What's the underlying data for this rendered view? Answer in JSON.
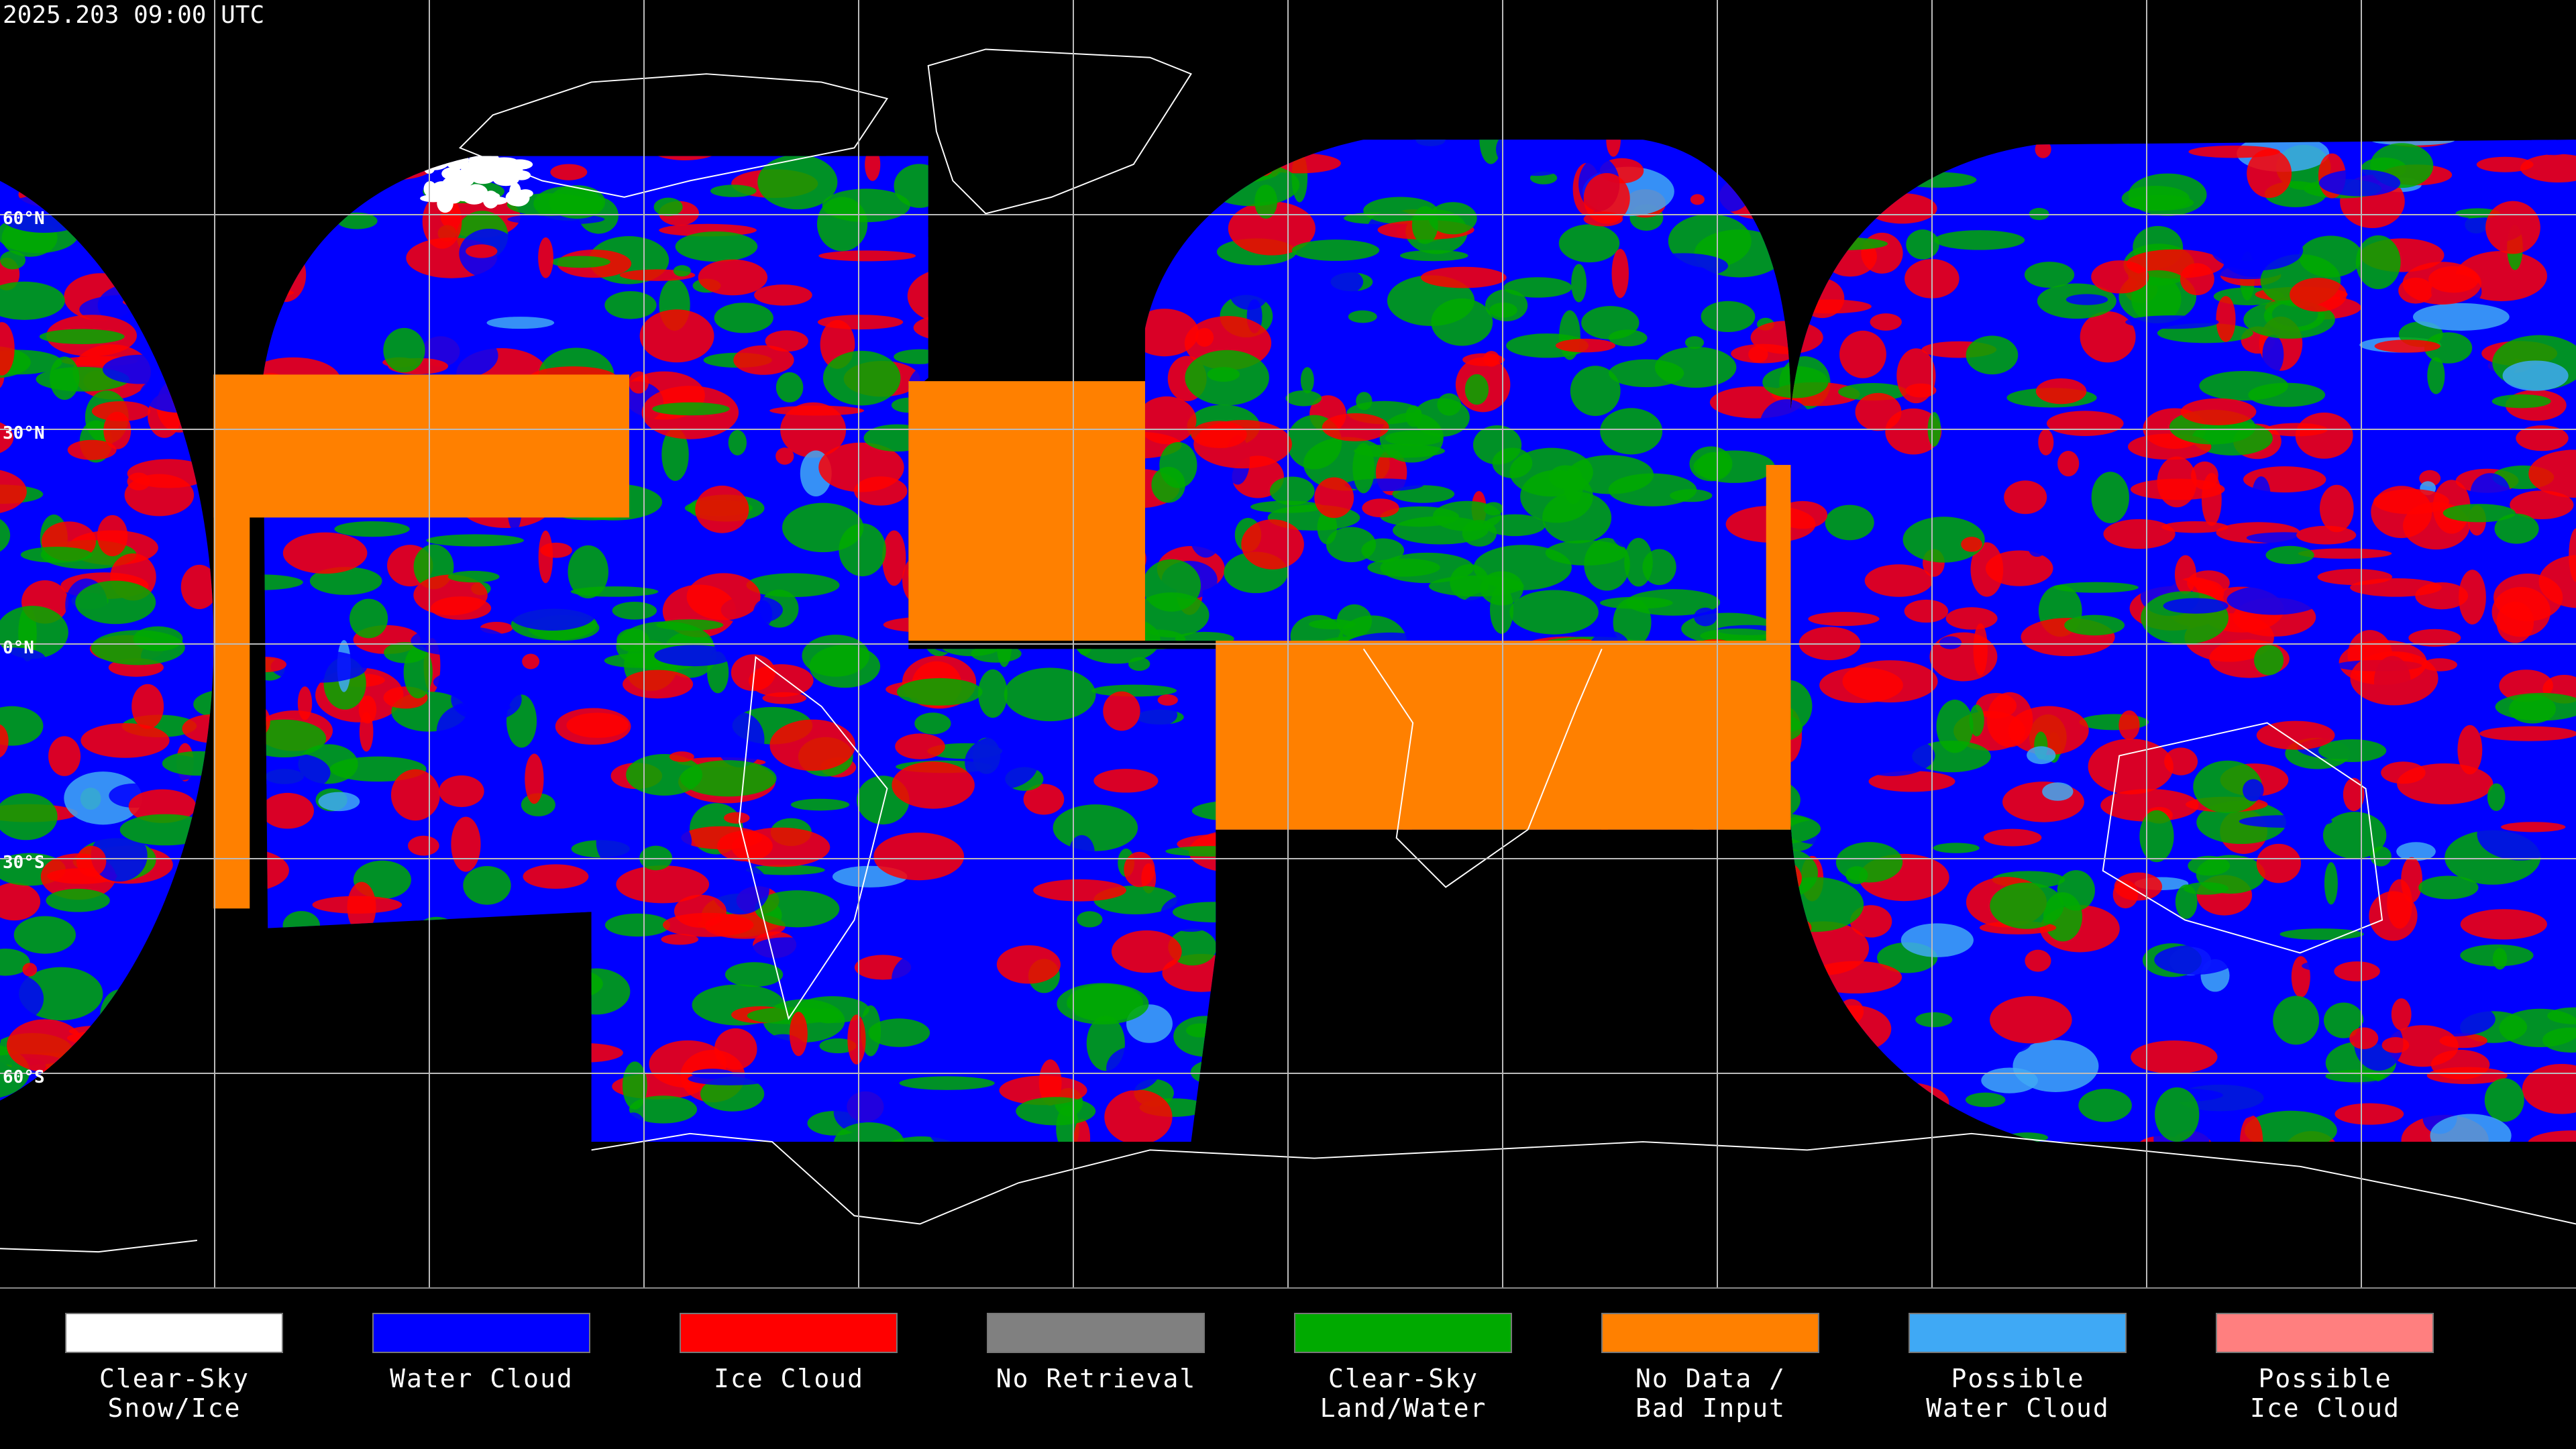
{
  "header": {
    "timestamp": "2025.203 09:00 UTC"
  },
  "map": {
    "latitude_labels": [
      "60°N",
      "30°N",
      "0°N",
      "30°S",
      "60°S"
    ]
  },
  "legend": {
    "items": [
      {
        "label": [
          "Clear-Sky",
          "Snow/Ice"
        ],
        "color": "#ffffff"
      },
      {
        "label": [
          "Water Cloud"
        ],
        "color": "#0000ff"
      },
      {
        "label": [
          "Ice Cloud"
        ],
        "color": "#ff0000"
      },
      {
        "label": [
          "No Retrieval"
        ],
        "color": "#808080"
      },
      {
        "label": [
          "Clear-Sky",
          "Land/Water"
        ],
        "color": "#00aa00"
      },
      {
        "label": [
          "No Data /",
          "Bad Input"
        ],
        "color": "#ff8000"
      },
      {
        "label": [
          "Possible",
          "Water Cloud"
        ],
        "color": "#3fa9f5"
      },
      {
        "label": [
          "Possible",
          "Ice Cloud"
        ],
        "color": "#ff7f7f"
      }
    ]
  }
}
